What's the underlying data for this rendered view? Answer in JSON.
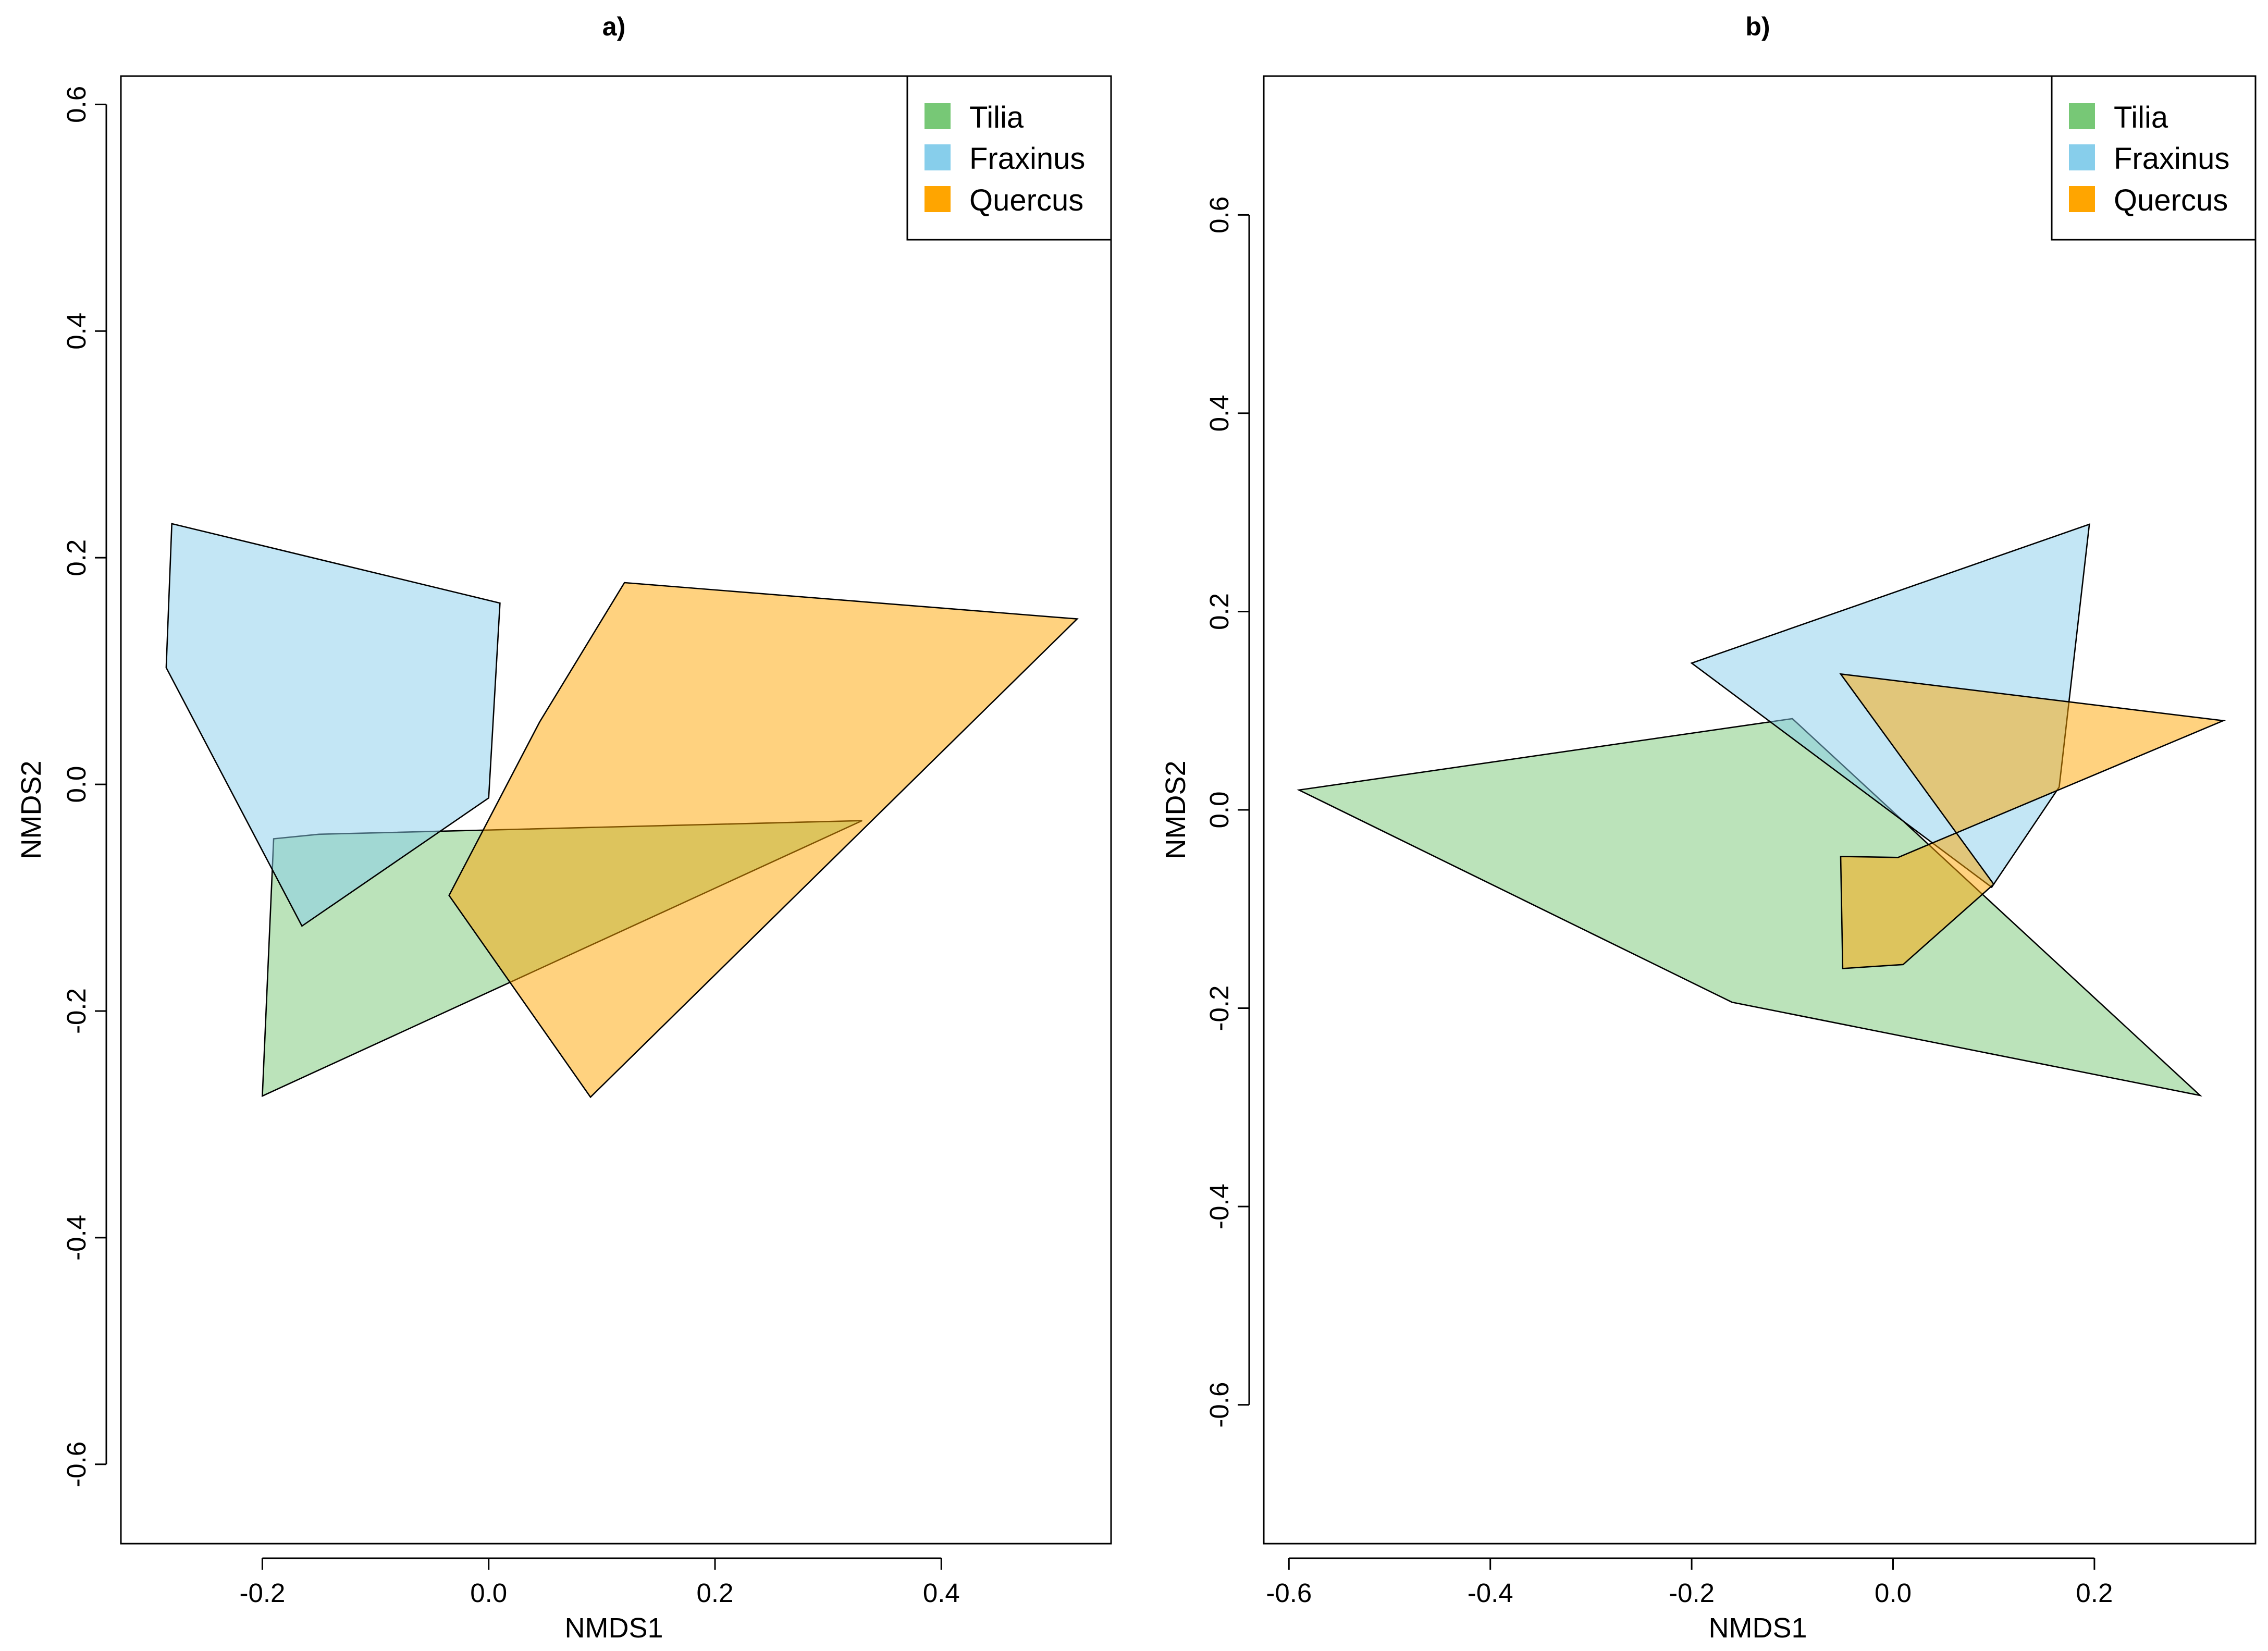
{
  "chart_data": [
    {
      "type": "hull",
      "title": "a)",
      "xlabel": "NMDS1",
      "ylabel": "NMDS2",
      "xlim": [
        -0.325,
        0.55
      ],
      "ylim": [
        -0.67,
        0.625
      ],
      "xticks": [
        -0.2,
        0.0,
        0.2,
        0.4
      ],
      "xtick_labels": [
        "-0.2",
        "0.0",
        "0.2",
        "0.4"
      ],
      "yticks": [
        -0.6,
        -0.4,
        -0.2,
        0.0,
        0.2,
        0.4,
        0.6
      ],
      "ytick_labels": [
        "-0.6",
        "-0.4",
        "-0.2",
        "0.0",
        "0.2",
        "0.4",
        "0.6"
      ],
      "legend": {
        "position": "top-right",
        "entries": [
          {
            "label": "Tilia",
            "color": "#77C876"
          },
          {
            "label": "Fraxinus",
            "color": "#87CEEB"
          },
          {
            "label": "Quercus",
            "color": "#FFA500"
          }
        ]
      },
      "series": [
        {
          "name": "Tilia",
          "fill": "rgba(119,200,118,0.5)",
          "points": [
            [
              -0.19,
              -0.048
            ],
            [
              -0.15,
              -0.044
            ],
            [
              0.33,
              -0.032
            ],
            [
              -0.2,
              -0.275
            ]
          ]
        },
        {
          "name": "Fraxinus",
          "fill": "rgba(135,206,235,0.5)",
          "points": [
            [
              -0.28,
              0.23
            ],
            [
              0.01,
              0.16
            ],
            [
              0.0,
              -0.012
            ],
            [
              -0.165,
              -0.125
            ],
            [
              -0.285,
              0.103
            ]
          ]
        },
        {
          "name": "Quercus",
          "fill": "rgba(255,165,0,0.5)",
          "points": [
            [
              0.12,
              0.178
            ],
            [
              0.52,
              0.146
            ],
            [
              0.09,
              -0.276
            ],
            [
              -0.035,
              -0.098
            ],
            [
              0.045,
              0.055
            ]
          ]
        }
      ]
    },
    {
      "type": "hull",
      "title": "b)",
      "xlabel": "NMDS1",
      "ylabel": "NMDS2",
      "xlim": [
        -0.625,
        0.36
      ],
      "ylim": [
        -0.74,
        0.74
      ],
      "xticks": [
        -0.6,
        -0.4,
        -0.2,
        0.0,
        0.2
      ],
      "xtick_labels": [
        "-0.6",
        "-0.4",
        "-0.2",
        "0.0",
        "0.2"
      ],
      "yticks": [
        -0.6,
        -0.4,
        -0.2,
        0.0,
        0.2,
        0.4,
        0.6
      ],
      "ytick_labels": [
        "-0.6",
        "-0.4",
        "-0.2",
        "0.0",
        "0.2",
        "0.4",
        "0.6"
      ],
      "legend": {
        "position": "top-right",
        "entries": [
          {
            "label": "Tilia",
            "color": "#77C876"
          },
          {
            "label": "Fraxinus",
            "color": "#87CEEB"
          },
          {
            "label": "Quercus",
            "color": "#FFA500"
          }
        ]
      },
      "series": [
        {
          "name": "Tilia",
          "fill": "rgba(119,200,118,0.5)",
          "points": [
            [
              -0.59,
              0.02
            ],
            [
              -0.1,
              0.092
            ],
            [
              0.305,
              -0.288
            ],
            [
              -0.16,
              -0.194
            ]
          ]
        },
        {
          "name": "Fraxinus",
          "fill": "rgba(135,206,235,0.5)",
          "points": [
            [
              -0.2,
              0.148
            ],
            [
              0.195,
              0.288
            ],
            [
              0.165,
              0.023
            ],
            [
              0.098,
              -0.078
            ]
          ]
        },
        {
          "name": "Quercus",
          "fill": "rgba(255,165,0,0.5)",
          "points": [
            [
              -0.052,
              0.137
            ],
            [
              0.328,
              0.09
            ],
            [
              0.005,
              -0.048
            ],
            [
              -0.052,
              -0.047
            ],
            [
              -0.05,
              -0.16
            ],
            [
              0.01,
              -0.156
            ],
            [
              0.1,
              -0.075
            ]
          ]
        }
      ]
    }
  ]
}
